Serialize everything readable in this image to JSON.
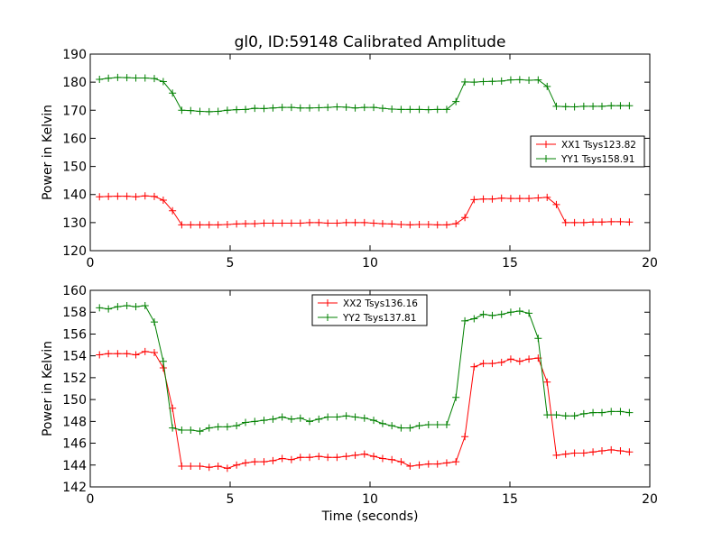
{
  "title": "gl0, ID:59148 Calibrated Amplitude",
  "colors": {
    "xx": "#ff0000",
    "yy": "#008000"
  },
  "chart_data": [
    {
      "type": "line",
      "ylabel": "Power in Kelvin",
      "xlabel": "",
      "xlim": [
        0,
        20
      ],
      "ylim": [
        120,
        190
      ],
      "xticks": [
        0,
        5,
        10,
        15,
        20
      ],
      "yticks": [
        120,
        130,
        140,
        150,
        160,
        170,
        180,
        190
      ],
      "legend_position": "center-right",
      "x": [
        0.33,
        0.65,
        0.98,
        1.31,
        1.63,
        1.96,
        2.29,
        2.61,
        2.94,
        3.27,
        3.59,
        3.92,
        4.25,
        4.57,
        4.9,
        5.23,
        5.55,
        5.88,
        6.21,
        6.53,
        6.86,
        7.19,
        7.51,
        7.84,
        8.17,
        8.49,
        8.82,
        9.15,
        9.47,
        9.8,
        10.13,
        10.45,
        10.78,
        11.11,
        11.43,
        11.76,
        12.09,
        12.41,
        12.74,
        13.07,
        13.39,
        13.72,
        14.05,
        14.37,
        14.7,
        15.03,
        15.35,
        15.68,
        16.01,
        16.33,
        16.66,
        16.99,
        17.31,
        17.64,
        17.97,
        18.29,
        18.62,
        18.95,
        19.27
      ],
      "series": [
        {
          "name": "XX1 Tsys123.82",
          "color": "#ff0000",
          "values": [
            139.2,
            139.3,
            139.4,
            139.4,
            139.2,
            139.5,
            139.3,
            138.0,
            134.2,
            129.2,
            129.2,
            129.2,
            129.2,
            129.2,
            129.3,
            129.5,
            129.6,
            129.6,
            129.8,
            129.8,
            129.8,
            129.8,
            129.8,
            130.0,
            130.0,
            129.8,
            129.8,
            130.0,
            130.0,
            130.0,
            129.8,
            129.6,
            129.5,
            129.3,
            129.2,
            129.3,
            129.3,
            129.2,
            129.2,
            129.6,
            131.8,
            138.2,
            138.4,
            138.4,
            138.7,
            138.6,
            138.6,
            138.6,
            138.8,
            139.0,
            136.4,
            130.0,
            130.0,
            130.0,
            130.2,
            130.2,
            130.3,
            130.3,
            130.2
          ]
        },
        {
          "name": "YY1 Tsys158.91",
          "color": "#008000",
          "values": [
            181.0,
            181.4,
            181.7,
            181.6,
            181.5,
            181.5,
            181.3,
            180.2,
            176.1,
            170.0,
            169.9,
            169.6,
            169.5,
            169.6,
            170.0,
            170.2,
            170.3,
            170.7,
            170.6,
            170.8,
            171.0,
            171.0,
            170.8,
            170.8,
            170.9,
            171.0,
            171.2,
            171.1,
            170.8,
            171.0,
            171.0,
            170.7,
            170.4,
            170.3,
            170.3,
            170.3,
            170.2,
            170.3,
            170.3,
            173.1,
            180.1,
            180.0,
            180.2,
            180.3,
            180.4,
            180.8,
            180.9,
            180.7,
            180.8,
            178.5,
            171.4,
            171.3,
            171.2,
            171.4,
            171.4,
            171.4,
            171.6,
            171.6,
            171.6
          ]
        }
      ]
    },
    {
      "type": "line",
      "ylabel": "Power in Kelvin",
      "xlabel": "Time (seconds)",
      "xlim": [
        0,
        20
      ],
      "ylim": [
        142,
        160
      ],
      "xticks": [
        0,
        5,
        10,
        15,
        20
      ],
      "yticks": [
        142,
        144,
        146,
        148,
        150,
        152,
        154,
        156,
        158,
        160
      ],
      "legend_position": "upper-center",
      "x": [
        0.33,
        0.65,
        0.98,
        1.31,
        1.63,
        1.96,
        2.29,
        2.61,
        2.94,
        3.27,
        3.59,
        3.92,
        4.25,
        4.57,
        4.9,
        5.23,
        5.55,
        5.88,
        6.21,
        6.53,
        6.86,
        7.19,
        7.51,
        7.84,
        8.17,
        8.49,
        8.82,
        9.15,
        9.47,
        9.8,
        10.13,
        10.45,
        10.78,
        11.11,
        11.43,
        11.76,
        12.09,
        12.41,
        12.74,
        13.07,
        13.39,
        13.72,
        14.05,
        14.37,
        14.7,
        15.03,
        15.35,
        15.68,
        16.01,
        16.33,
        16.66,
        16.99,
        17.31,
        17.64,
        17.97,
        18.29,
        18.62,
        18.95,
        19.27
      ],
      "series": [
        {
          "name": "XX2 Tsys136.16",
          "color": "#ff0000",
          "values": [
            154.1,
            154.2,
            154.2,
            154.2,
            154.1,
            154.4,
            154.3,
            152.9,
            149.2,
            143.9,
            143.9,
            143.9,
            143.8,
            143.9,
            143.7,
            144.0,
            144.2,
            144.3,
            144.3,
            144.4,
            144.6,
            144.5,
            144.7,
            144.7,
            144.8,
            144.7,
            144.7,
            144.8,
            144.9,
            145.0,
            144.8,
            144.6,
            144.5,
            144.3,
            143.9,
            144.0,
            144.1,
            144.1,
            144.2,
            144.3,
            146.6,
            153.0,
            153.3,
            153.3,
            153.4,
            153.7,
            153.5,
            153.7,
            153.8,
            151.6,
            144.9,
            145.0,
            145.1,
            145.1,
            145.2,
            145.3,
            145.4,
            145.3,
            145.2
          ]
        },
        {
          "name": "YY2 Tsys137.81",
          "color": "#008000",
          "values": [
            158.4,
            158.3,
            158.5,
            158.6,
            158.5,
            158.6,
            157.1,
            153.5,
            147.4,
            147.2,
            147.2,
            147.1,
            147.4,
            147.5,
            147.5,
            147.6,
            147.9,
            148.0,
            148.1,
            148.2,
            148.4,
            148.2,
            148.3,
            148.0,
            148.2,
            148.4,
            148.4,
            148.5,
            148.4,
            148.3,
            148.1,
            147.8,
            147.6,
            147.4,
            147.4,
            147.6,
            147.7,
            147.7,
            147.7,
            150.2,
            157.2,
            157.4,
            157.8,
            157.7,
            157.8,
            158.0,
            158.1,
            157.9,
            155.6,
            148.6,
            148.6,
            148.5,
            148.5,
            148.7,
            148.8,
            148.8,
            148.9,
            148.9,
            148.8
          ]
        }
      ]
    }
  ]
}
